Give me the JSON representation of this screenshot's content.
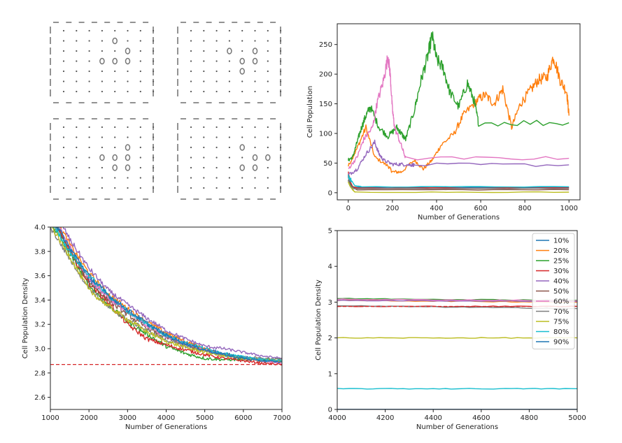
{
  "colors": {
    "tab10": [
      "#1f77b4",
      "#ff7f0e",
      "#2ca02c",
      "#d62728",
      "#9467bd",
      "#8c564b",
      "#e377c2",
      "#7f7f7f",
      "#bcbd22",
      "#17becf"
    ],
    "axis": "#222222",
    "reference_line": "#d62728",
    "grid_symbol": "#777777"
  },
  "grid_panel": {
    "boards": [
      {
        "name": "top-left",
        "cells": [
          [
            1,
            5
          ],
          [
            2,
            6
          ],
          [
            3,
            4
          ],
          [
            3,
            5
          ],
          [
            3,
            6
          ]
        ]
      },
      {
        "name": "top-right",
        "cells": [
          [
            2,
            4
          ],
          [
            2,
            6
          ],
          [
            3,
            5
          ],
          [
            3,
            6
          ],
          [
            4,
            5
          ]
        ]
      },
      {
        "name": "bottom-left",
        "cells": [
          [
            2,
            6
          ],
          [
            3,
            4
          ],
          [
            3,
            5
          ],
          [
            3,
            6
          ],
          [
            4,
            5
          ],
          [
            4,
            6
          ]
        ]
      },
      {
        "name": "bottom-right",
        "cells": [
          [
            2,
            5
          ],
          [
            3,
            6
          ],
          [
            3,
            7
          ],
          [
            4,
            5
          ],
          [
            4,
            6
          ]
        ]
      }
    ]
  },
  "chart_data": [
    {
      "type": "line",
      "title": "",
      "xlabel": "Number of Generations",
      "ylabel": "Cell Population",
      "xlim": [
        -50,
        1050
      ],
      "ylim": [
        -12,
        285
      ],
      "xticks": [
        0,
        200,
        400,
        600,
        800,
        1000
      ],
      "yticks": [
        0,
        50,
        100,
        150,
        200,
        250
      ],
      "xtick_labels": [
        "0",
        "200",
        "400",
        "600",
        "800",
        "1000"
      ],
      "ytick_labels": [
        "0",
        "50",
        "100",
        "150",
        "200",
        "250"
      ],
      "series": [
        {
          "name": "10%",
          "x": [
            0,
            8,
            15,
            30,
            1000
          ],
          "values": [
            30,
            14,
            10,
            9,
            9
          ]
        },
        {
          "name": "20%",
          "x": [
            0,
            40,
            80,
            120,
            180,
            200,
            240,
            300,
            340,
            380,
            420,
            480,
            520,
            580,
            620,
            660,
            700,
            740,
            780,
            820,
            860,
            900,
            930,
            960,
            990,
            1000
          ],
          "values": [
            45,
            75,
            110,
            60,
            45,
            35,
            35,
            55,
            40,
            55,
            80,
            100,
            130,
            155,
            165,
            150,
            175,
            110,
            150,
            170,
            190,
            195,
            230,
            190,
            170,
            130
          ]
        },
        {
          "name": "25%",
          "x": [
            0,
            20,
            40,
            60,
            80,
            100,
            140,
            180,
            220,
            240,
            260,
            300,
            330,
            360,
            380,
            400,
            430,
            460,
            500,
            540,
            570,
            590,
            1000
          ],
          "values": [
            55,
            60,
            85,
            110,
            130,
            145,
            110,
            95,
            110,
            100,
            90,
            140,
            190,
            230,
            265,
            225,
            210,
            170,
            145,
            185,
            155,
            118,
            118
          ]
        },
        {
          "name": "30%",
          "x": [
            0,
            10,
            20,
            40,
            1000
          ],
          "values": [
            35,
            18,
            10,
            8,
            8
          ]
        },
        {
          "name": "40%",
          "x": [
            0,
            40,
            80,
            120,
            140,
            160,
            200,
            240,
            280,
            300,
            1000
          ],
          "values": [
            30,
            40,
            65,
            85,
            65,
            55,
            48,
            48,
            47,
            47,
            47
          ]
        },
        {
          "name": "50%",
          "x": [
            0,
            10,
            20,
            40,
            1000
          ],
          "values": [
            28,
            15,
            10,
            5,
            5
          ]
        },
        {
          "name": "60%",
          "x": [
            0,
            40,
            70,
            110,
            130,
            160,
            180,
            190,
            200,
            210,
            240,
            260,
            1000
          ],
          "values": [
            40,
            60,
            90,
            110,
            150,
            190,
            230,
            200,
            140,
            110,
            80,
            58,
            58
          ]
        },
        {
          "name": "70%",
          "x": [
            0,
            5,
            10,
            20,
            1000
          ],
          "values": [
            22,
            14,
            10,
            7,
            7
          ]
        },
        {
          "name": "75%",
          "x": [
            0,
            10,
            20,
            30,
            1000
          ],
          "values": [
            18,
            10,
            5,
            1,
            1
          ]
        },
        {
          "name": "80%",
          "x": [
            0,
            15,
            30,
            60,
            1000
          ],
          "values": [
            28,
            20,
            12,
            10,
            10
          ]
        }
      ]
    },
    {
      "type": "line",
      "title": "",
      "xlabel": "Number of Generations",
      "ylabel": "Cell Population Density",
      "xlim": [
        1000,
        7000
      ],
      "ylim": [
        2.5,
        4.0
      ],
      "xticks": [
        1000,
        2000,
        3000,
        4000,
        5000,
        6000,
        7000
      ],
      "yticks": [
        2.6,
        2.8,
        3.0,
        3.2,
        3.4,
        3.6,
        3.8,
        4.0
      ],
      "xtick_labels": [
        "1000",
        "2000",
        "3000",
        "4000",
        "5000",
        "6000",
        "7000"
      ],
      "ytick_labels": [
        "2.6",
        "2.8",
        "3.0",
        "3.2",
        "3.4",
        "3.6",
        "3.8",
        "4.0"
      ],
      "reference_line": 2.87,
      "series": [
        {
          "name": "10%",
          "x": [
            1000,
            1500,
            2000,
            2500,
            3000,
            3500,
            4000,
            4500,
            5000,
            5500,
            6000,
            6500,
            7000
          ],
          "values": [
            4.1,
            3.82,
            3.57,
            3.42,
            3.3,
            3.2,
            3.12,
            3.05,
            3.0,
            2.96,
            2.93,
            2.91,
            2.9
          ]
        },
        {
          "name": "20%",
          "x": [
            1000,
            1500,
            2000,
            2500,
            3000,
            3500,
            4000,
            4500,
            5000,
            5500,
            6000,
            6500,
            7000
          ],
          "values": [
            4.15,
            3.86,
            3.62,
            3.45,
            3.33,
            3.22,
            3.13,
            3.06,
            3.0,
            2.95,
            2.92,
            2.9,
            2.89
          ]
        },
        {
          "name": "25%",
          "x": [
            1000,
            1500,
            2000,
            2500,
            3000,
            3500,
            4000,
            4500,
            5000,
            5500,
            6000,
            6500,
            7000
          ],
          "values": [
            4.05,
            3.78,
            3.52,
            3.36,
            3.22,
            3.12,
            3.02,
            2.96,
            2.92,
            2.91,
            2.91,
            2.91,
            2.92
          ]
        },
        {
          "name": "30%",
          "x": [
            1000,
            1500,
            2000,
            2500,
            3000,
            3500,
            4000,
            4500,
            5000,
            5500,
            6000,
            6500,
            7000
          ],
          "values": [
            4.1,
            3.8,
            3.54,
            3.38,
            3.2,
            3.08,
            3.03,
            2.99,
            2.95,
            2.92,
            2.9,
            2.88,
            2.87
          ]
        },
        {
          "name": "40%",
          "x": [
            1000,
            1500,
            2000,
            2500,
            3000,
            3500,
            4000,
            4500,
            5000,
            5500,
            6000,
            6500,
            7000
          ],
          "values": [
            4.2,
            3.9,
            3.66,
            3.48,
            3.36,
            3.25,
            3.15,
            3.08,
            3.02,
            3.0,
            2.97,
            2.94,
            2.92
          ]
        },
        {
          "name": "50%",
          "x": [
            1000,
            1500,
            2000,
            2500,
            3000,
            3500,
            4000,
            4500,
            5000,
            5500,
            6000,
            6500,
            7000
          ],
          "values": [
            4.08,
            3.8,
            3.55,
            3.4,
            3.28,
            3.17,
            3.09,
            3.03,
            2.98,
            2.95,
            2.92,
            2.9,
            2.89
          ]
        },
        {
          "name": "60%",
          "x": [
            1000,
            1500,
            2000,
            2500,
            3000,
            3500,
            4000,
            4500,
            5000,
            5500,
            6000,
            6500,
            7000
          ],
          "values": [
            4.12,
            3.84,
            3.58,
            3.42,
            3.3,
            3.19,
            3.1,
            3.04,
            2.99,
            2.95,
            2.92,
            2.9,
            2.88
          ]
        },
        {
          "name": "70%",
          "x": [
            1000,
            1500,
            2000,
            2500,
            3000,
            3500,
            4000,
            4500,
            5000,
            5500,
            6000,
            6500,
            7000
          ],
          "values": [
            4.0,
            3.74,
            3.5,
            3.34,
            3.24,
            3.15,
            3.07,
            3.02,
            2.98,
            2.95,
            2.93,
            2.92,
            2.91
          ]
        },
        {
          "name": "75%",
          "x": [
            1000,
            1500,
            2000,
            2500,
            3000,
            3500,
            4000,
            4500,
            5000,
            5500,
            6000,
            6500,
            7000
          ],
          "values": [
            4.02,
            3.76,
            3.48,
            3.35,
            3.24,
            3.14,
            3.06,
            3.01,
            2.97,
            2.94,
            2.92,
            2.91,
            2.9
          ]
        },
        {
          "name": "80%",
          "x": [
            1000,
            1500,
            2000,
            2500,
            3000,
            3500,
            4000,
            4500,
            5000,
            5500,
            6000,
            6500,
            7000
          ],
          "values": [
            4.06,
            3.8,
            3.6,
            3.44,
            3.31,
            3.2,
            3.11,
            3.05,
            3.0,
            2.96,
            2.93,
            2.91,
            2.9
          ]
        },
        {
          "name": "90%",
          "x": [
            1000,
            1500,
            2000,
            2500,
            3000,
            3500,
            4000,
            4500,
            5000,
            5500,
            6000,
            6500,
            7000
          ],
          "values": [
            4.1,
            3.83,
            3.6,
            3.44,
            3.32,
            3.21,
            3.11,
            3.04,
            2.99,
            2.95,
            2.92,
            2.9,
            2.89
          ]
        }
      ]
    },
    {
      "type": "line",
      "title": "",
      "xlabel": "Number of Generations",
      "ylabel": "Cell Population Density",
      "xlim": [
        4000,
        5000
      ],
      "ylim": [
        0,
        5
      ],
      "xticks": [
        4000,
        4200,
        4400,
        4600,
        4800,
        5000
      ],
      "yticks": [
        0,
        1,
        2,
        3,
        4,
        5
      ],
      "xtick_labels": [
        "4000",
        "4200",
        "4400",
        "4600",
        "4800",
        "5000"
      ],
      "ytick_labels": [
        "0",
        "1",
        "2",
        "3",
        "4",
        "5"
      ],
      "reference_line": 2.88,
      "legend": "top-right",
      "series": [
        {
          "name": "10%",
          "x": [
            4000,
            5000
          ],
          "values": [
            0.0,
            0.0
          ]
        },
        {
          "name": "20%",
          "x": [
            4000,
            5000
          ],
          "values": [
            3.05,
            3.0
          ]
        },
        {
          "name": "25%",
          "x": [
            4000,
            5000
          ],
          "values": [
            3.1,
            3.05
          ]
        },
        {
          "name": "30%",
          "x": [
            4000,
            5000
          ],
          "values": [
            2.88,
            2.88
          ]
        },
        {
          "name": "40%",
          "x": [
            4000,
            5000
          ],
          "values": [
            3.05,
            3.02
          ]
        },
        {
          "name": "50%",
          "x": [
            4000,
            5000
          ],
          "values": [
            0.0,
            0.0
          ]
        },
        {
          "name": "60%",
          "x": [
            4000,
            5000
          ],
          "values": [
            3.08,
            3.04
          ]
        },
        {
          "name": "70%",
          "x": [
            4000,
            5000
          ],
          "values": [
            2.9,
            2.82
          ]
        },
        {
          "name": "75%",
          "x": [
            4000,
            5000
          ],
          "values": [
            2.0,
            2.0
          ]
        },
        {
          "name": "80%",
          "x": [
            4000,
            5000
          ],
          "values": [
            0.58,
            0.58
          ]
        },
        {
          "name": "90%",
          "x": [
            4000,
            5000
          ],
          "values": [
            0.0,
            0.0
          ]
        }
      ]
    }
  ]
}
